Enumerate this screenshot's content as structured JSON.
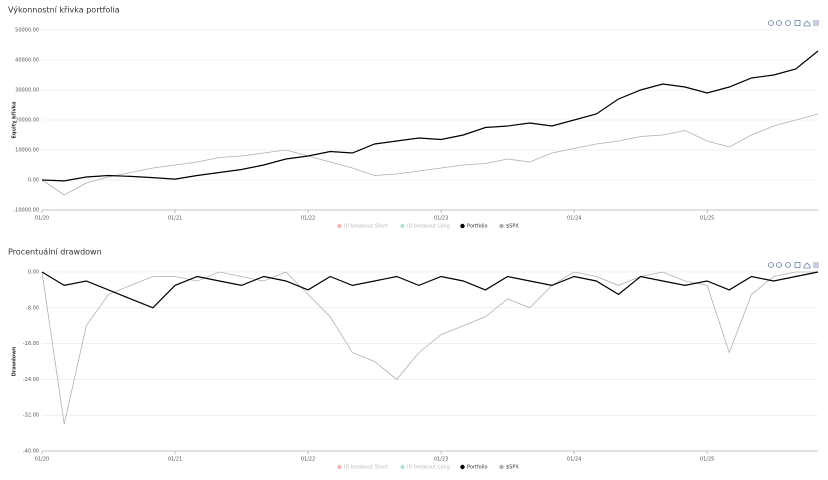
{
  "chart_data": [
    {
      "type": "line",
      "title": "Výkonnostní křivka portfolia",
      "y_label": "Equity křivka",
      "categories": [
        "01/20",
        null,
        null,
        null,
        null,
        null,
        "01/21",
        null,
        null,
        null,
        null,
        null,
        "01/22",
        null,
        null,
        null,
        null,
        null,
        "01/23",
        null,
        null,
        null,
        null,
        null,
        "01/24",
        null,
        null,
        null,
        null,
        null,
        "01/25",
        null,
        null,
        null,
        null,
        null
      ],
      "series": [
        {
          "name": "ID breakout Short",
          "color": "#f4b6b6"
        },
        {
          "name": "ID breakout Long",
          "color": "#b6e0d8"
        },
        {
          "name": "Portfolio",
          "color": "#000000",
          "values": [
            0,
            -300,
            1000,
            1500,
            1200,
            800,
            300,
            1500,
            2500,
            3500,
            5000,
            7000,
            8000,
            9500,
            9000,
            12000,
            13000,
            14000,
            13500,
            15000,
            17500,
            18000,
            19000,
            18000,
            20000,
            22000,
            27000,
            30000,
            32000,
            31000,
            29000,
            31000,
            34000,
            35000,
            37000,
            43000
          ]
        },
        {
          "name": "$SPX",
          "color": "#b0b0b0",
          "values": [
            0,
            -5000,
            -1000,
            1000,
            2500,
            4000,
            5000,
            6000,
            7500,
            8000,
            9000,
            10000,
            8000,
            6000,
            4000,
            1500,
            2000,
            3000,
            4000,
            5000,
            5500,
            7000,
            6000,
            9000,
            10500,
            12000,
            13000,
            14500,
            15000,
            16500,
            13000,
            11000,
            15000,
            18000,
            20000,
            22000
          ]
        }
      ],
      "ylim": [
        -10000,
        50000
      ],
      "yticks": [
        {
          "value": -10000,
          "label": "-10000.00"
        },
        {
          "value": 0,
          "label": "0.00"
        },
        {
          "value": 10000,
          "label": "10000.00"
        },
        {
          "value": 20000,
          "label": "20000.00"
        },
        {
          "value": 30000,
          "label": "30000.00"
        },
        {
          "value": 40000,
          "label": "40000.00"
        },
        {
          "value": 50000,
          "label": "50000.00"
        }
      ],
      "grid": true
    },
    {
      "type": "line",
      "title": "Procentuální drawdown",
      "y_label": "Drawdown",
      "categories": [
        "01/20",
        null,
        null,
        null,
        null,
        null,
        "01/21",
        null,
        null,
        null,
        null,
        null,
        "01/22",
        null,
        null,
        null,
        null,
        null,
        "01/23",
        null,
        null,
        null,
        null,
        null,
        "01/24",
        null,
        null,
        null,
        null,
        null,
        "01/25",
        null,
        null,
        null,
        null,
        null
      ],
      "series": [
        {
          "name": "ID breakout Short",
          "color": "#f4b6b6"
        },
        {
          "name": "ID breakout Long",
          "color": "#b6e0d8"
        },
        {
          "name": "Portfolio",
          "color": "#000000",
          "values": [
            0,
            -3,
            -2,
            -4,
            -6,
            -8,
            -3,
            -1,
            -2,
            -3,
            -1,
            -2,
            -4,
            -1,
            -3,
            -2,
            -1,
            -3,
            -1,
            -2,
            -4,
            -1,
            -2,
            -3,
            -1,
            -2,
            -5,
            -1,
            -2,
            -3,
            -2,
            -4,
            -1,
            -2,
            -1,
            0
          ]
        },
        {
          "name": "$SPX",
          "color": "#b0b0b0",
          "values": [
            0,
            -34,
            -12,
            -5,
            -3,
            -1,
            -1,
            -2,
            0,
            -1,
            -2,
            0,
            -5,
            -10,
            -18,
            -20,
            -24,
            -18,
            -14,
            -12,
            -10,
            -6,
            -8,
            -3,
            0,
            -1,
            -3,
            -1,
            0,
            -2,
            -3,
            -18,
            -5,
            -1,
            0,
            0
          ]
        }
      ],
      "ylim": [
        -40,
        0
      ],
      "yticks": [
        {
          "value": -40,
          "label": "-40.00"
        },
        {
          "value": -32,
          "label": "-32.00"
        },
        {
          "value": -24,
          "label": "-24.00"
        },
        {
          "value": -16,
          "label": "-16.00"
        },
        {
          "value": -8,
          "label": "-8.00"
        },
        {
          "value": 0,
          "label": "0.00"
        }
      ],
      "grid": true
    }
  ]
}
